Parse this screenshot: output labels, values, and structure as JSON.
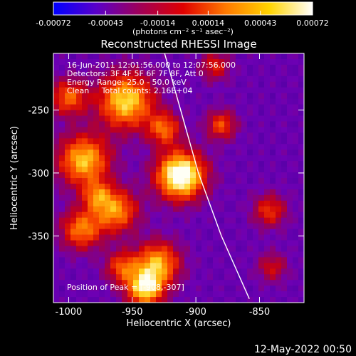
{
  "colorbar": {
    "tick_labels": [
      "-0.00072",
      "-0.00043",
      "-0.00014",
      "0.00014",
      "0.00043",
      "0.00072"
    ],
    "tick_values": [
      -0.00072,
      -0.00043,
      -0.00014,
      0.00014,
      0.00043,
      0.00072
    ],
    "range": [
      -0.00072,
      0.00072
    ],
    "units": "(photons cm⁻² s⁻¹ asec⁻²)",
    "colors": [
      "#0000ff",
      "#5a00c8",
      "#a00058",
      "#e00000",
      "#ff7a00",
      "#ffd400",
      "#ffffff"
    ]
  },
  "chart_data": {
    "type": "heatmap",
    "title": "Reconstructed RHESSI Image",
    "xlabel": "Heliocentric X (arcsec)",
    "ylabel": "Heliocentric Y (arcsec)",
    "xlim": [
      -1012,
      -815
    ],
    "ylim": [
      -403,
      -205
    ],
    "x_ticks": [
      -1000,
      -950,
      -900,
      -850
    ],
    "x_tick_labels": [
      "-1000",
      "-950",
      "-900",
      "-850"
    ],
    "y_ticks": [
      -250,
      -300,
      -350
    ],
    "y_tick_labels": [
      "-250",
      "-300",
      "-350"
    ],
    "annotations": [
      "16-Jun-2011 12:01:56.000 to 12:07:56.000",
      "Detectors: 3F 4F 5F 6F 7F 8F, Att 0",
      "Energy Range: 25.0 - 50.0 keV",
      "Clean     Total counts: 2.16E+04"
    ],
    "peak_label": "Position of Peak = [-908,-307]",
    "peak": [
      -908,
      -307
    ],
    "limb_points": [
      [
        -926,
        -200
      ],
      [
        -912,
        -250
      ],
      [
        -898,
        -300
      ],
      [
        -880,
        -350
      ],
      [
        -858,
        -400
      ]
    ],
    "sources": [
      {
        "x": -912,
        "y": -302,
        "intensity": 1.0,
        "radius": 13
      },
      {
        "x": -955,
        "y": -243,
        "intensity": 0.75,
        "radius": 15
      },
      {
        "x": -988,
        "y": -290,
        "intensity": 0.7,
        "radius": 14
      },
      {
        "x": -963,
        "y": -330,
        "intensity": 0.6,
        "radius": 12
      },
      {
        "x": -930,
        "y": -372,
        "intensity": 0.65,
        "radius": 12
      },
      {
        "x": -940,
        "y": -392,
        "intensity": 0.75,
        "radius": 10
      },
      {
        "x": -990,
        "y": -345,
        "intensity": 0.55,
        "radius": 11
      },
      {
        "x": -925,
        "y": -265,
        "intensity": 0.5,
        "radius": 9
      },
      {
        "x": -880,
        "y": -262,
        "intensity": 0.45,
        "radius": 8
      },
      {
        "x": -842,
        "y": -330,
        "intensity": 0.4,
        "radius": 9
      },
      {
        "x": -840,
        "y": -375,
        "intensity": 0.3,
        "radius": 8
      },
      {
        "x": -1000,
        "y": -240,
        "intensity": 0.5,
        "radius": 10
      },
      {
        "x": -958,
        "y": -375,
        "intensity": 0.45,
        "radius": 9
      },
      {
        "x": -978,
        "y": -318,
        "intensity": 0.4,
        "radius": 8
      },
      {
        "x": -885,
        "y": -215,
        "intensity": 0.35,
        "radius": 8
      }
    ]
  },
  "footer": {
    "timestamp": "12-May-2022 00:50"
  }
}
